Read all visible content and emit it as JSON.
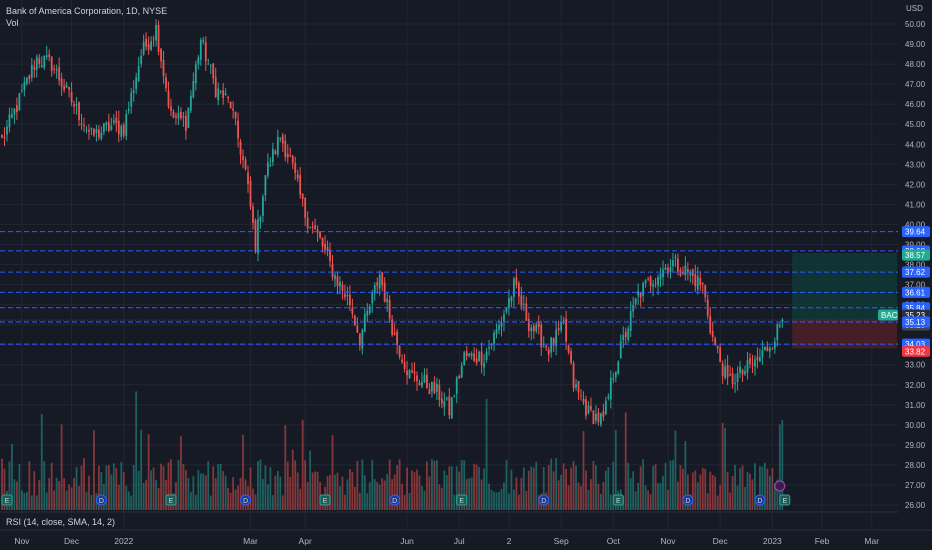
{
  "legend": {
    "title": "Bank of America Corporation, 1D, NYSE",
    "volume_label": "Vol"
  },
  "indicator": {
    "rsi_label": "RSI (14, close, SMA, 14, 2)"
  },
  "colors": {
    "background": "#161a25",
    "up": "#26a69a",
    "down": "#ef5350",
    "level_line": "#2962ff",
    "grid": "#222632",
    "target_zone": "#0f3a38",
    "stop_zone": "#4a1f27"
  },
  "chart_data": {
    "type": "candlestick",
    "symbol": "BAC",
    "currency_label": "USD",
    "y_ticks": [
      "50.00",
      "49.00",
      "48.00",
      "47.00",
      "46.00",
      "45.00",
      "44.00",
      "43.00",
      "42.00",
      "41.00",
      "40.00",
      "39.00",
      "38.00",
      "37.00",
      "36.00",
      "35.00",
      "34.00",
      "33.00",
      "32.00",
      "31.00",
      "30.00",
      "29.00",
      "28.00",
      "27.00",
      "26.00"
    ],
    "ylim": [
      25.8,
      50.5
    ],
    "x_ticks": [
      {
        "label": "Nov",
        "idx": 8
      },
      {
        "label": "Dec",
        "idx": 28
      },
      {
        "label": "2022",
        "idx": 49
      },
      {
        "label": "Mar",
        "idx": 100
      },
      {
        "label": "Apr",
        "idx": 122
      },
      {
        "label": "Jun",
        "idx": 163
      },
      {
        "label": "Jul",
        "idx": 184
      },
      {
        "label": "2",
        "idx": 204
      },
      {
        "label": "Sep",
        "idx": 225
      },
      {
        "label": "Oct",
        "idx": 246
      },
      {
        "label": "Nov",
        "idx": 268
      },
      {
        "label": "Dec",
        "idx": 289
      },
      {
        "label": "2023",
        "idx": 310
      },
      {
        "label": "Feb",
        "idx": 330
      },
      {
        "label": "Mar",
        "idx": 350
      }
    ],
    "horizontal_levels": [
      39.64,
      38.68,
      37.62,
      36.61,
      35.84,
      35.13,
      34.03
    ],
    "price_labels": [
      {
        "text": "39.64",
        "kind": "level"
      },
      {
        "text": "38.68",
        "kind": "level"
      },
      {
        "text": "38.57",
        "kind": "target"
      },
      {
        "text": "37.62",
        "kind": "level"
      },
      {
        "text": "36.61",
        "kind": "level"
      },
      {
        "text": "35.84",
        "kind": "level"
      },
      {
        "text": "35.23",
        "kind": "last"
      },
      {
        "text": "35.23",
        "kind": "entry"
      },
      {
        "text": "35.13",
        "kind": "level"
      },
      {
        "text": "34.03",
        "kind": "level"
      },
      {
        "text": "33.82",
        "kind": "stop"
      }
    ],
    "position": {
      "entry": 35.23,
      "target": 38.57,
      "stop": 33.82
    },
    "event_markers": [
      {
        "type": "E",
        "idx": 2
      },
      {
        "type": "D",
        "idx": 40
      },
      {
        "type": "E",
        "idx": 68
      },
      {
        "type": "D",
        "idx": 98
      },
      {
        "type": "E",
        "idx": 130
      },
      {
        "type": "D",
        "idx": 158
      },
      {
        "type": "E",
        "idx": 185
      },
      {
        "type": "D",
        "idx": 218
      },
      {
        "type": "E",
        "idx": 248
      },
      {
        "type": "D",
        "idx": 276
      },
      {
        "type": "D",
        "idx": 305
      },
      {
        "type": "E",
        "idx": 315
      }
    ],
    "anchors": [
      [
        0,
        44.2
      ],
      [
        6,
        45.9
      ],
      [
        14,
        48.3
      ],
      [
        20,
        48.0
      ],
      [
        26,
        46.6
      ],
      [
        36,
        44.4
      ],
      [
        44,
        44.9
      ],
      [
        49,
        44.8
      ],
      [
        56,
        48.5
      ],
      [
        62,
        49.8
      ],
      [
        68,
        45.4
      ],
      [
        74,
        45.1
      ],
      [
        80,
        49.2
      ],
      [
        86,
        46.8
      ],
      [
        92,
        46.0
      ],
      [
        98,
        42.6
      ],
      [
        102,
        39.0
      ],
      [
        106,
        42.5
      ],
      [
        112,
        44.4
      ],
      [
        116,
        43.2
      ],
      [
        122,
        40.5
      ],
      [
        128,
        39.2
      ],
      [
        134,
        37.4
      ],
      [
        140,
        36.1
      ],
      [
        144,
        34.3
      ],
      [
        152,
        37.5
      ],
      [
        158,
        34.4
      ],
      [
        164,
        32.5
      ],
      [
        170,
        32.1
      ],
      [
        176,
        31.5
      ],
      [
        180,
        30.7
      ],
      [
        186,
        33.4
      ],
      [
        194,
        33.4
      ],
      [
        200,
        34.9
      ],
      [
        206,
        36.9
      ],
      [
        212,
        35.1
      ],
      [
        220,
        33.8
      ],
      [
        226,
        34.9
      ],
      [
        230,
        32.0
      ],
      [
        236,
        30.6
      ],
      [
        242,
        30.2
      ],
      [
        246,
        32.6
      ],
      [
        250,
        34.2
      ],
      [
        256,
        36.5
      ],
      [
        264,
        37.6
      ],
      [
        270,
        38.1
      ],
      [
        276,
        37.6
      ],
      [
        282,
        36.9
      ],
      [
        286,
        34.3
      ],
      [
        292,
        32.1
      ],
      [
        298,
        32.6
      ],
      [
        304,
        33.2
      ],
      [
        310,
        34.2
      ],
      [
        314,
        35.23
      ]
    ]
  }
}
